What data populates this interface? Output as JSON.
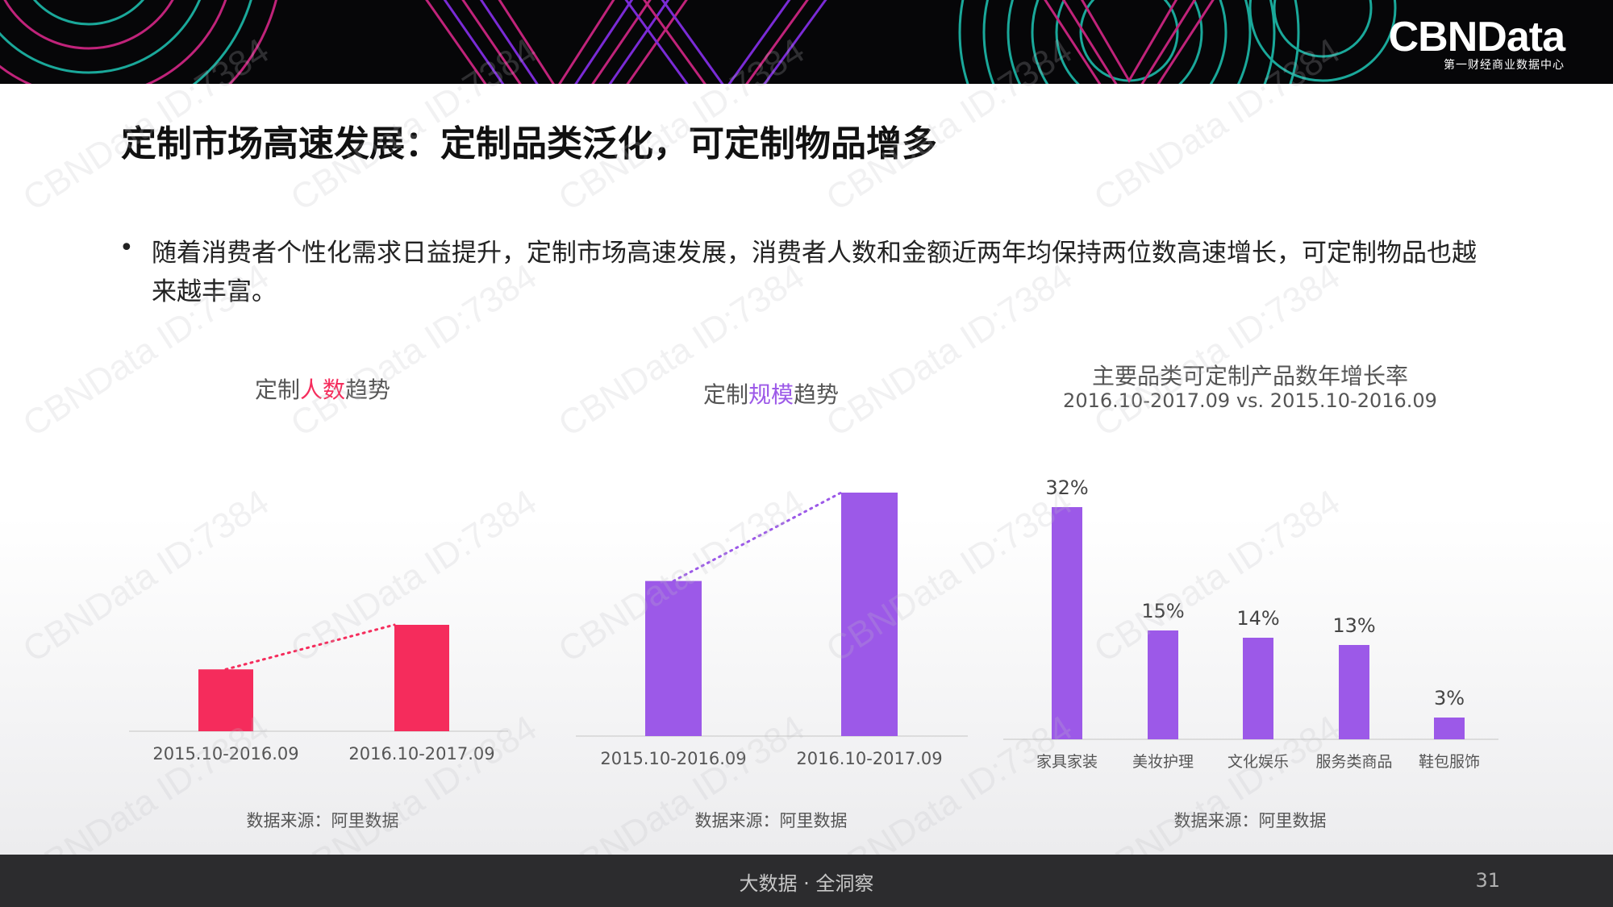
{
  "brand": {
    "logo_text": "CBNData",
    "logo_subtitle": "第一财经商业数据中心"
  },
  "title": "定制市场高速发展：定制品类泛化，可定制物品增多",
  "bullet": "随着消费者个性化需求日益提升，定制市场高速发展，消费者人数和金额近两年均保持两位数高速增长，可定制物品也越来越丰富。",
  "charts": {
    "people": {
      "title_prefix": "定制",
      "title_highlight": "人数",
      "title_suffix": "趋势",
      "highlight_color": "#f52c5c",
      "source": "数据来源：阿里数据"
    },
    "scale": {
      "title_prefix": "定制",
      "title_highlight": "规模",
      "title_suffix": "趋势",
      "highlight_color": "#9c59e8",
      "source": "数据来源：阿里数据"
    },
    "growth": {
      "title": "主要品类可定制产品数年增长率",
      "subtitle": "2016.10-2017.09 vs. 2015.10-2016.09",
      "source": "数据来源：阿里数据"
    }
  },
  "chart_data": [
    {
      "type": "bar",
      "categories": [
        "2015.10-2016.09",
        "2016.10-2017.09"
      ],
      "values": [
        1,
        1.72
      ],
      "color": "#f52c5c",
      "trend_line": "dotted"
    },
    {
      "type": "bar",
      "categories": [
        "2015.10-2016.09",
        "2016.10-2017.09"
      ],
      "values": [
        1,
        1.57
      ],
      "color": "#9c59e8",
      "trend_line": "dotted"
    },
    {
      "type": "bar",
      "title": "主要品类可定制产品数年增长率",
      "subtitle": "2016.10-2017.09 vs. 2015.10-2016.09",
      "categories": [
        "家具家装",
        "美妆护理",
        "文化娱乐",
        "服务类商品",
        "鞋包服饰"
      ],
      "values": [
        32,
        15,
        14,
        13,
        3
      ],
      "data_labels": [
        "32%",
        "15%",
        "14%",
        "13%",
        "3%"
      ],
      "color": "#9c59e8",
      "ylim": [
        0,
        33
      ]
    }
  ],
  "watermark": "CBNData ID:7384",
  "footer": {
    "text": "大数据 · 全洞察",
    "page": "31"
  }
}
